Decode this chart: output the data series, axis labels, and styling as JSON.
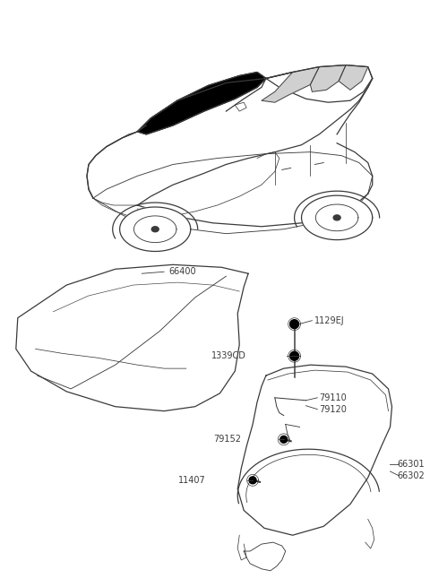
{
  "bg_color": "#ffffff",
  "line_color": "#3a3a3a",
  "label_color": "#3a3a3a",
  "label_fontsize": 7.0,
  "line_width": 0.9,
  "fig_w": 4.8,
  "fig_h": 6.55,
  "dpi": 100
}
